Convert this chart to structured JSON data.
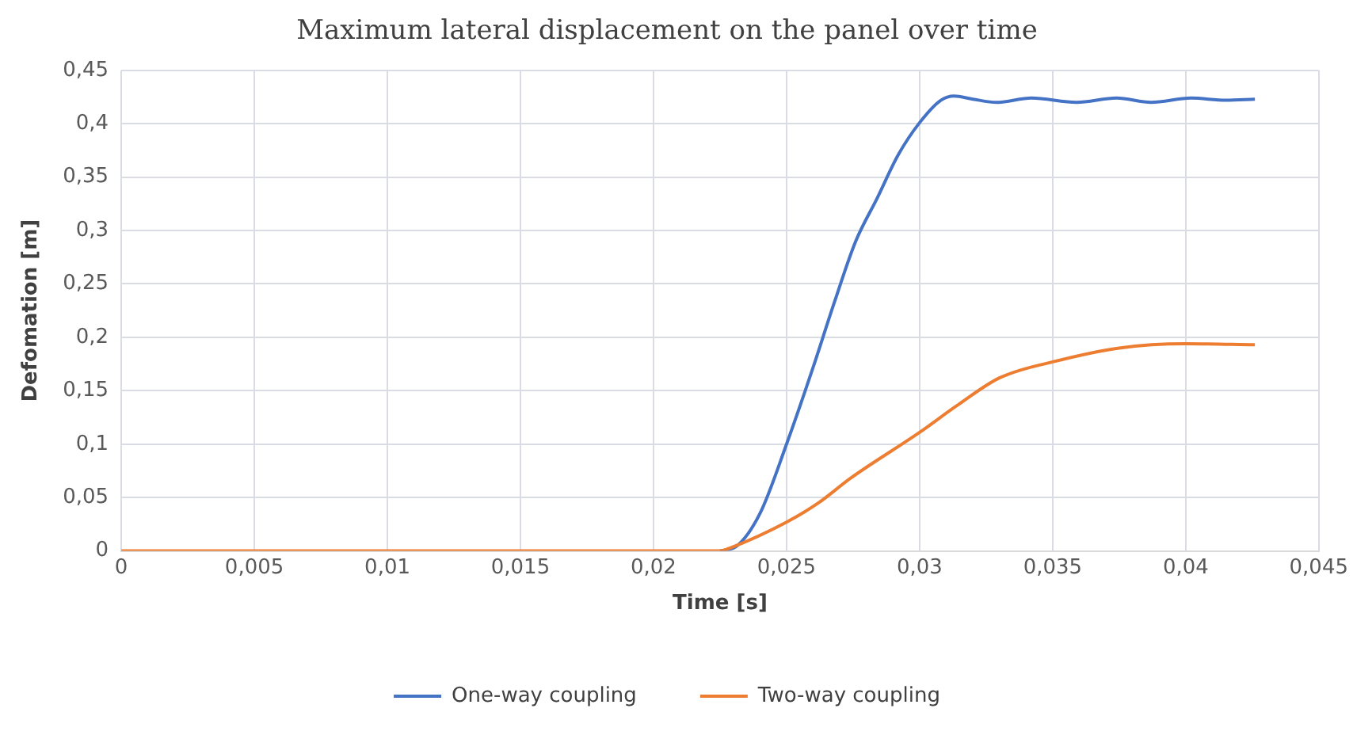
{
  "chart_data": {
    "type": "line",
    "title": "Maximum lateral displacement on the panel over time",
    "xlabel": "Time [s]",
    "ylabel": "Defomation [m]",
    "series": [
      {
        "name": "One-way coupling",
        "color": "#4472c4",
        "x": [
          0.0225,
          0.0231,
          0.024,
          0.025,
          0.026,
          0.0268,
          0.0276,
          0.0284,
          0.0292,
          0.03,
          0.0308,
          0.0313,
          0.032,
          0.0329,
          0.0342,
          0.0359,
          0.0374,
          0.0387,
          0.0402,
          0.0415,
          0.0426
        ],
        "values": [
          0,
          0.004,
          0.035,
          0.1,
          0.172,
          0.233,
          0.29,
          0.33,
          0.371,
          0.401,
          0.422,
          0.426,
          0.423,
          0.42,
          0.424,
          0.42,
          0.424,
          0.42,
          0.424,
          0.422,
          0.423
        ]
      },
      {
        "name": "Two-way coupling",
        "color": "#ed7d31",
        "x": [
          0,
          0.005,
          0.01,
          0.015,
          0.02,
          0.0225,
          0.0229,
          0.025,
          0.0262,
          0.0274,
          0.03,
          0.0314,
          0.033,
          0.035,
          0.0375,
          0.04,
          0.0426
        ],
        "values": [
          0,
          0,
          0,
          0,
          0,
          0,
          0.003,
          0.027,
          0.045,
          0.068,
          0.111,
          0.136,
          0.162,
          0.177,
          0.19,
          0.194,
          0.193
        ]
      }
    ],
    "xlim": [
      0,
      0.045
    ],
    "xticks": [
      0,
      {
        "value": 0.005,
        "label": "0,005"
      },
      {
        "value": 0.01,
        "label": "0,01"
      },
      {
        "value": 0.015,
        "label": "0,015"
      },
      {
        "value": 0.02,
        "label": "0,02"
      },
      {
        "value": 0.025,
        "label": "0,025"
      },
      {
        "value": 0.03,
        "label": "0,03"
      },
      {
        "value": 0.035,
        "label": "0,035"
      },
      {
        "value": 0.04,
        "label": "0,04"
      },
      {
        "value": 0.045,
        "label": "0,045"
      }
    ],
    "ylim": [
      0,
      0.45
    ],
    "yticks": [
      0,
      {
        "value": 0.05,
        "label": "0,05"
      },
      {
        "value": 0.1,
        "label": "0,1"
      },
      {
        "value": 0.15,
        "label": "0,15"
      },
      {
        "value": 0.2,
        "label": "0,2"
      },
      {
        "value": 0.25,
        "label": "0,25"
      },
      {
        "value": 0.3,
        "label": "0,3"
      },
      {
        "value": 0.35,
        "label": "0,35"
      },
      {
        "value": 0.4,
        "label": "0,4"
      },
      {
        "value": 0.45,
        "label": "0,45"
      }
    ],
    "grid": true,
    "legend": "bottom",
    "marker": "none",
    "line_style": "solid"
  }
}
